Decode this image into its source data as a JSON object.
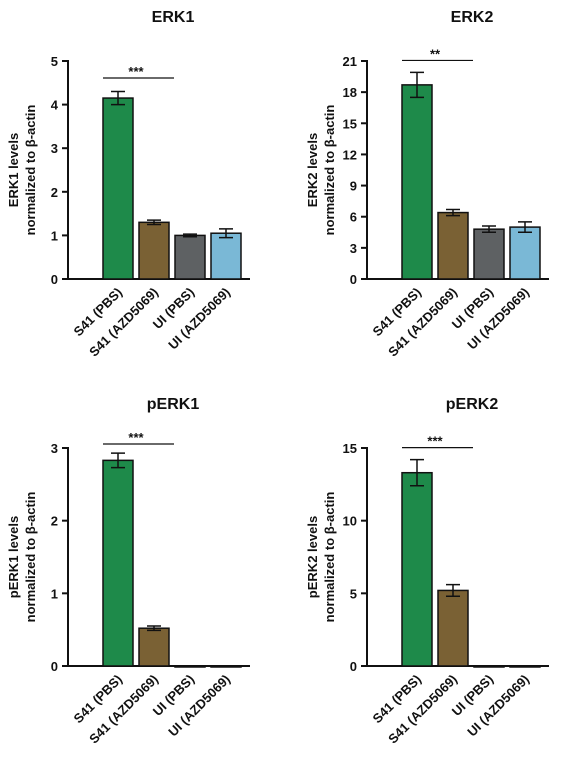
{
  "chart_data": [
    {
      "type": "bar",
      "title": "ERK1",
      "ylabel": [
        "ERK1 levels",
        "normalized to β-actin"
      ],
      "categories": [
        "S41 (PBS)",
        "S41 (AZD5069)",
        "UI (PBS)",
        "UI (AZD5069)"
      ],
      "values": [
        4.15,
        1.3,
        1.0,
        1.05
      ],
      "errors": [
        0.15,
        0.05,
        0.03,
        0.1
      ],
      "colors": [
        "#1e8a4a",
        "#7a6134",
        "#5e6163",
        "#7ab8d6"
      ],
      "ylim": [
        0,
        5
      ],
      "yticks": [
        0,
        1,
        2,
        3,
        4,
        5
      ],
      "annotation": "***"
    },
    {
      "type": "bar",
      "title": "ERK2",
      "ylabel": [
        "ERK2 levels",
        "normalized to β-actin"
      ],
      "categories": [
        "S41 (PBS)",
        "S41 (AZD5069)",
        "UI (PBS)",
        "UI (AZD5069)"
      ],
      "values": [
        18.7,
        6.4,
        4.8,
        5.0
      ],
      "errors": [
        1.2,
        0.3,
        0.3,
        0.5
      ],
      "colors": [
        "#1e8a4a",
        "#7a6134",
        "#5e6163",
        "#7ab8d6"
      ],
      "ylim": [
        0,
        21
      ],
      "yticks": [
        0,
        3,
        6,
        9,
        12,
        15,
        18,
        21
      ],
      "annotation": "**"
    },
    {
      "type": "bar",
      "title": "pERK1",
      "ylabel": [
        "pERK1 levels",
        "normalized to β-actin"
      ],
      "categories": [
        "S41 (PBS)",
        "S41 (AZD5069)",
        "UI (PBS)",
        "UI (AZD5069)"
      ],
      "values": [
        2.83,
        0.52,
        0,
        0
      ],
      "errors": [
        0.1,
        0.03,
        0,
        0
      ],
      "colors": [
        "#1e8a4a",
        "#7a6134",
        "#5e6163",
        "#7ab8d6"
      ],
      "ylim": [
        0,
        3
      ],
      "yticks": [
        0,
        1,
        2,
        3
      ],
      "annotation": "***"
    },
    {
      "type": "bar",
      "title": "pERK2",
      "ylabel": [
        "pERK2 levels",
        "normalized to β-actin"
      ],
      "categories": [
        "S41 (PBS)",
        "S41 (AZD5069)",
        "UI (PBS)",
        "UI (AZD5069)"
      ],
      "values": [
        13.3,
        5.2,
        0,
        0
      ],
      "errors": [
        0.9,
        0.4,
        0,
        0
      ],
      "colors": [
        "#1e8a4a",
        "#7a6134",
        "#5e6163",
        "#7ab8d6"
      ],
      "ylim": [
        0,
        15
      ],
      "yticks": [
        0,
        5,
        10,
        15
      ],
      "annotation": "***"
    }
  ]
}
